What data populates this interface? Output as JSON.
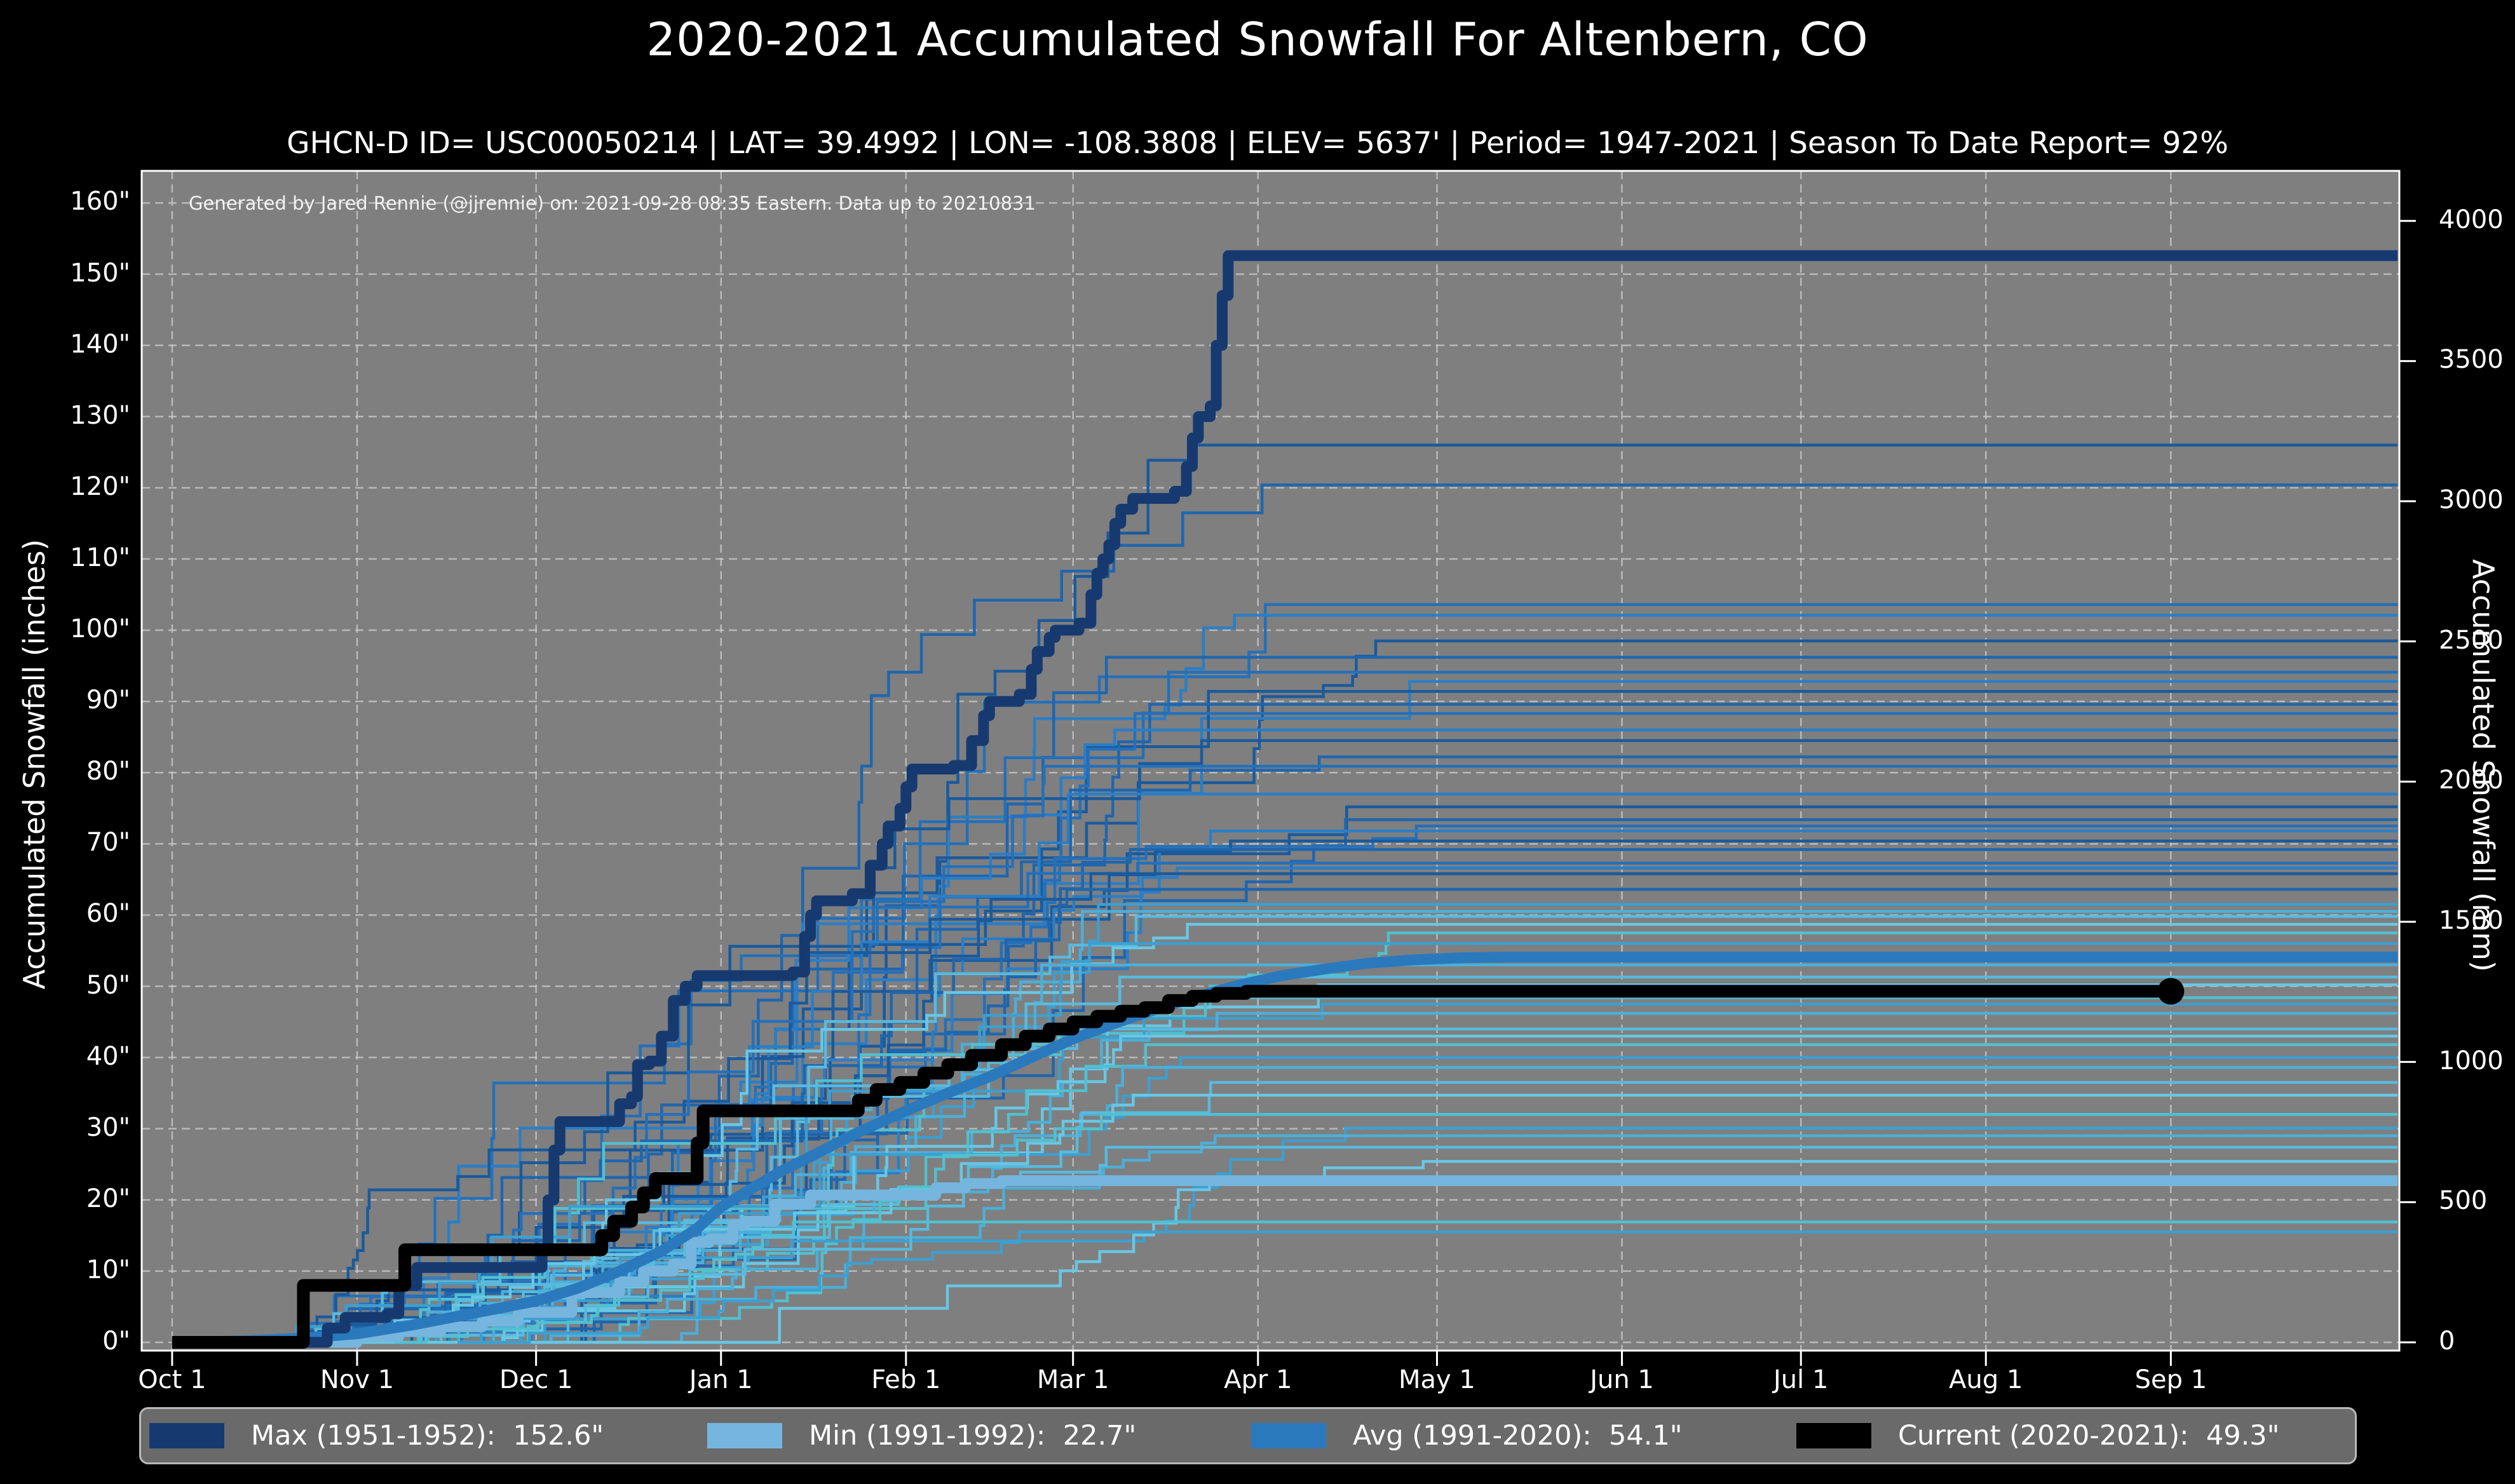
{
  "title": "2020-2021 Accumulated Snowfall For Altenbern, CO",
  "subtitle": "GHCN-D ID= USC00050214 | LAT= 39.4992 | LON= -108.3808 | ELEV= 5637' | Period= 1947-2021 | Season To Date Report= 92%",
  "annotation": "Generated by Jared Rennie (@jjrennie) on: 2021-09-28 08:35 Eastern. Data up to 20210831",
  "axes": {
    "left_label": "Accumulated Snowfall (inches)",
    "right_label": "Accumulated Snowfall (mm)"
  },
  "colors": {
    "figure_bg": "#000000",
    "plot_bg": "#7f7f7f",
    "grid": "#cdcdcd",
    "spine": "#ffffff",
    "text": "#ffffff",
    "max": "#163a70",
    "min": "#76b5dd",
    "avg": "#2b79bd",
    "current": "#000000",
    "season_dark_palette": [
      "#1a5a9c",
      "#1f66ae",
      "#2470ba",
      "#2a7ec6"
    ],
    "season_light_palette": [
      "#3d9fd0",
      "#4bafd9",
      "#58bade",
      "#68c7e4",
      "#52c0cf"
    ],
    "legend_bg": "#6a6a6a",
    "legend_border": "#b9b9b9"
  },
  "legend": {
    "items": [
      {
        "key": "max",
        "label": "Max (1951-1952):  152.6\"",
        "color": "#163a70"
      },
      {
        "key": "min",
        "label": "Min (1991-1992):  22.7\"",
        "color": "#76b5dd"
      },
      {
        "key": "avg",
        "label": "Avg (1991-2020):  54.1\"",
        "color": "#2b79bd"
      },
      {
        "key": "current",
        "label": "Current (2020-2021):  49.3\"",
        "color": "#000000"
      }
    ]
  },
  "chart_data": {
    "type": "line",
    "x_unit": "days_since_oct_1",
    "xlim_days": [
      -5.1,
      373.3
    ],
    "ylim_inches": [
      -1.16,
      164.5
    ],
    "grid": "dashed, white, on inch ticks and month ticks",
    "y_ticks_inches": [
      0,
      10,
      20,
      30,
      40,
      50,
      60,
      70,
      80,
      90,
      100,
      110,
      120,
      130,
      140,
      150,
      160
    ],
    "y_tick_suffix": "\"",
    "right_ticks_mm": [
      0,
      500,
      1000,
      1500,
      2000,
      2500,
      3000,
      3500,
      4000
    ],
    "mm_per_inch": 25.4,
    "x_ticks": [
      {
        "label": "Oct 1",
        "day": 0
      },
      {
        "label": "Nov 1",
        "day": 31
      },
      {
        "label": "Dec 1",
        "day": 61
      },
      {
        "label": "Jan 1",
        "day": 92
      },
      {
        "label": "Feb 1",
        "day": 123
      },
      {
        "label": "Mar 1",
        "day": 151
      },
      {
        "label": "Apr 1",
        "day": 182
      },
      {
        "label": "May 1",
        "day": 212
      },
      {
        "label": "Jun 1",
        "day": 243
      },
      {
        "label": "Jul 1",
        "day": 273
      },
      {
        "label": "Aug 1",
        "day": 304
      },
      {
        "label": "Sep 1",
        "day": 335
      }
    ],
    "series": [
      {
        "name": "Max (1951-1952)",
        "total_inches": 152.6,
        "color_key": "max",
        "style": "step",
        "width": 17,
        "points": [
          [
            0,
            0
          ],
          [
            24,
            0
          ],
          [
            26,
            2
          ],
          [
            29,
            3.5
          ],
          [
            36,
            4
          ],
          [
            38,
            8
          ],
          [
            41,
            10.5
          ],
          [
            60,
            10.5
          ],
          [
            62,
            13
          ],
          [
            63,
            20
          ],
          [
            64,
            27
          ],
          [
            65,
            31
          ],
          [
            73,
            31
          ],
          [
            75,
            33.5
          ],
          [
            77,
            34.5
          ],
          [
            78,
            39
          ],
          [
            80,
            39.5
          ],
          [
            82,
            43
          ],
          [
            84,
            48
          ],
          [
            86,
            50
          ],
          [
            88,
            51.5
          ],
          [
            104,
            52
          ],
          [
            106,
            57
          ],
          [
            107,
            60
          ],
          [
            108,
            62
          ],
          [
            114,
            63
          ],
          [
            117,
            67
          ],
          [
            119,
            70
          ],
          [
            120,
            72.5
          ],
          [
            122,
            75
          ],
          [
            123,
            78
          ],
          [
            124,
            80.5
          ],
          [
            131,
            81
          ],
          [
            134,
            84.5
          ],
          [
            136,
            88
          ],
          [
            137,
            90
          ],
          [
            142,
            91
          ],
          [
            144,
            94.5
          ],
          [
            145,
            97
          ],
          [
            147,
            99
          ],
          [
            148,
            100
          ],
          [
            152,
            101
          ],
          [
            154,
            105
          ],
          [
            155,
            108
          ],
          [
            156,
            110
          ],
          [
            157,
            112
          ],
          [
            158,
            115
          ],
          [
            159,
            117
          ],
          [
            161,
            118.5
          ],
          [
            168,
            119.5
          ],
          [
            170,
            123
          ],
          [
            171,
            127
          ],
          [
            172,
            130
          ],
          [
            174,
            131.5
          ],
          [
            175,
            140
          ],
          [
            176,
            147
          ],
          [
            177,
            152.6
          ],
          [
            373,
            152.6
          ]
        ]
      },
      {
        "name": "Min (1991-1992)",
        "total_inches": 22.7,
        "color_key": "min",
        "style": "step",
        "width": 17,
        "points": [
          [
            0,
            0
          ],
          [
            28,
            0
          ],
          [
            31,
            0.8
          ],
          [
            38,
            1.5
          ],
          [
            45,
            2.2
          ],
          [
            52,
            3
          ],
          [
            58,
            4.2
          ],
          [
            66,
            4.2
          ],
          [
            67,
            7
          ],
          [
            75,
            8.5
          ],
          [
            79,
            10
          ],
          [
            84,
            11
          ],
          [
            87,
            14
          ],
          [
            90,
            14.5
          ],
          [
            94,
            16.5
          ],
          [
            96,
            17
          ],
          [
            101,
            19.4
          ],
          [
            107,
            20.7
          ],
          [
            124,
            20.7
          ],
          [
            128,
            21.7
          ],
          [
            133,
            22.3
          ],
          [
            139,
            22.7
          ],
          [
            373,
            22.7
          ]
        ]
      },
      {
        "name": "Avg (1991-2020)",
        "total_inches": 54.1,
        "color_key": "avg",
        "style": "smooth",
        "width": 17,
        "points": [
          [
            0,
            0
          ],
          [
            12,
            0.2
          ],
          [
            22,
            0.6
          ],
          [
            31,
            1.2
          ],
          [
            40,
            2.4
          ],
          [
            50,
            4
          ],
          [
            61,
            5.8
          ],
          [
            68,
            7.6
          ],
          [
            75,
            10
          ],
          [
            82,
            12.8
          ],
          [
            88,
            16
          ],
          [
            92,
            19
          ],
          [
            96,
            21
          ],
          [
            102,
            24
          ],
          [
            108,
            26.5
          ],
          [
            115,
            29.5
          ],
          [
            123,
            32.5
          ],
          [
            130,
            35
          ],
          [
            137,
            37.3
          ],
          [
            144,
            40
          ],
          [
            151,
            42.6
          ],
          [
            158,
            44.8
          ],
          [
            165,
            46.8
          ],
          [
            172,
            48.6
          ],
          [
            179,
            50.2
          ],
          [
            186,
            51.5
          ],
          [
            193,
            52.4
          ],
          [
            200,
            53.2
          ],
          [
            208,
            53.7
          ],
          [
            216,
            54
          ],
          [
            224,
            54.1
          ],
          [
            373,
            54.1
          ]
        ]
      },
      {
        "name": "Current (2020-2021)",
        "total_inches": 49.3,
        "color_key": "current",
        "style": "step",
        "width": 20,
        "end_marker": true,
        "points": [
          [
            0,
            0
          ],
          [
            20,
            0
          ],
          [
            22,
            8
          ],
          [
            37,
            8
          ],
          [
            39,
            13
          ],
          [
            70,
            13
          ],
          [
            72,
            15
          ],
          [
            74,
            17
          ],
          [
            77,
            19
          ],
          [
            79,
            21
          ],
          [
            81,
            23
          ],
          [
            87,
            23
          ],
          [
            88,
            28
          ],
          [
            89,
            32.5
          ],
          [
            113,
            32.5
          ],
          [
            115,
            34
          ],
          [
            118,
            35.5
          ],
          [
            122,
            36.5
          ],
          [
            126,
            37.8
          ],
          [
            130,
            39
          ],
          [
            134,
            40.3
          ],
          [
            139,
            41.8
          ],
          [
            143,
            43
          ],
          [
            147,
            44
          ],
          [
            151,
            45
          ],
          [
            155,
            45.8
          ],
          [
            159,
            46.5
          ],
          [
            163,
            47
          ],
          [
            167,
            48
          ],
          [
            171,
            48.6
          ],
          [
            175,
            49
          ],
          [
            180,
            49.3
          ],
          [
            335,
            49.3
          ]
        ]
      }
    ],
    "background_seasons": {
      "description": "Thin lines: each snowfall season 1947-2021, accumulating Oct-May then flat to right edge; season-end totals in inches read from right-edge plateaus",
      "final_totals_dark": [
        126.0,
        120.4,
        103.6,
        102.1,
        98.5,
        96.2,
        94.1,
        92.8,
        91.4,
        89.6,
        88.3,
        86.0,
        84.5,
        82.2,
        80.9,
        77.0,
        75.2,
        73.4,
        72.5,
        71.8,
        70.4,
        69.2,
        67.3,
        66.6,
        65.8,
        63.6
      ],
      "final_totals_light": [
        61.5,
        60.5,
        59.8,
        58.7,
        57.5,
        56.0,
        53.0,
        51.3,
        50.2,
        48.4,
        47.5,
        46.2,
        44.0,
        43.0,
        41.8,
        40.0,
        38.6,
        36.5,
        34.7,
        32.0,
        30.1,
        29.0,
        27.4,
        25.4,
        16.9,
        15.5
      ],
      "thin_line_width": 4.5
    }
  }
}
